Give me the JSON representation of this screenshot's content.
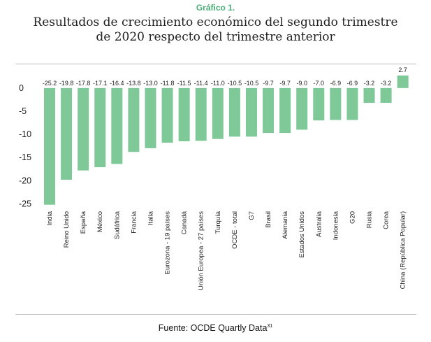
{
  "header": {
    "kicker": "Gráfico 1.",
    "title_line1": "Resultados de crecimiento económico del segundo trimestre",
    "title_line2": "de 2020 respecto del trimestre anterior"
  },
  "footer": {
    "source": "Fuente: OCDE Quartly Data",
    "source_ref": "31"
  },
  "chart_data": {
    "type": "bar",
    "title": "Resultados de crecimiento económico del segundo trimestre de 2020 respecto del trimestre anterior",
    "xlabel": "",
    "ylabel": "",
    "ylim": [
      -26,
      3
    ],
    "yticks": [
      "0",
      "-5",
      "-10",
      "-15",
      "-20",
      "-25"
    ],
    "grid": false,
    "bar_color": "#7ec997",
    "categories": [
      "India",
      "Reino Unido",
      "España",
      "México",
      "Sudáfrica",
      "Francia",
      "Italia",
      "Eurozona - 19 países",
      "Canadá",
      "Unión Europea - 27 países",
      "Turquía",
      "OCDE - total",
      "G7",
      "Brasil",
      "Alemania",
      "Estados Unidos",
      "Australia",
      "Indonesia",
      "G20",
      "Rusia",
      "Corea",
      "China (República Popular)"
    ],
    "values": [
      -25.2,
      -19.8,
      -17.8,
      -17.1,
      -16.4,
      -13.8,
      -13.0,
      -11.8,
      -11.5,
      -11.4,
      -11.0,
      -10.5,
      -10.5,
      -9.7,
      -9.7,
      -9.0,
      -7.0,
      -6.9,
      -6.9,
      -3.2,
      -3.2,
      2.7
    ],
    "value_labels": [
      "-25.2",
      "-19.8",
      "-17.8",
      "-17.1",
      "-16.4",
      "-13.8",
      "-13.0",
      "-11.8",
      "-11.5",
      "-11.4",
      "-11.0",
      "-10.5",
      "-10.5",
      "-9.7",
      "-9.7",
      "-9.0",
      "-7.0",
      "-6.9",
      "-6.9",
      "-3.2",
      "-3.2",
      "2.7"
    ]
  }
}
